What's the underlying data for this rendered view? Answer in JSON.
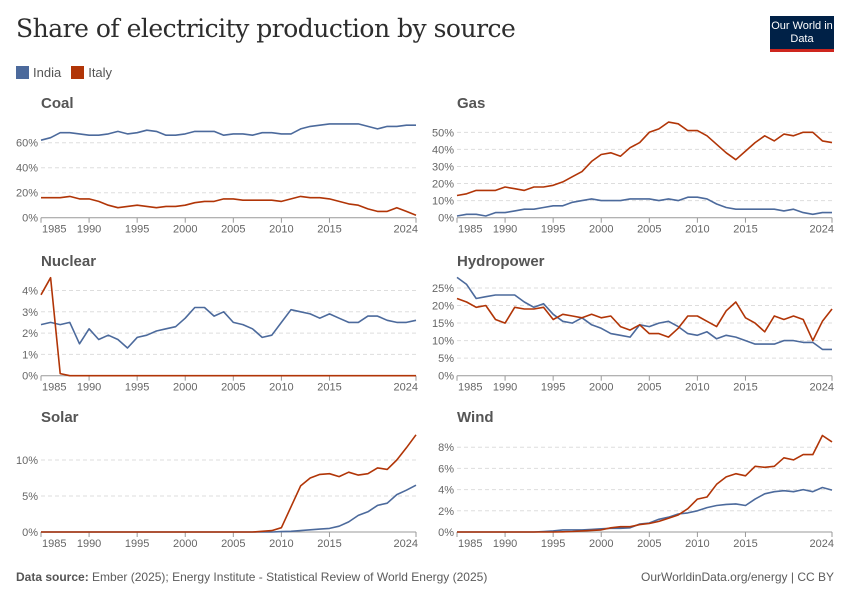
{
  "header": {
    "title": "Share of electricity production by source",
    "logo_text": "Our World in Data"
  },
  "legend": [
    {
      "name": "India",
      "color": "#4c6a9c"
    },
    {
      "name": "Italy",
      "color": "#b13507"
    }
  ],
  "footer": {
    "source_label": "Data source:",
    "source_text": "Ember (2025); Energy Institute - Statistical Review of World Energy (2025)",
    "credit": "OurWorldinData.org/energy | CC BY"
  },
  "chart_data": [
    {
      "type": "line",
      "title": "Coal",
      "x": {
        "start": 1985,
        "end": 2024,
        "tick_labels": [
          "1985",
          "1990",
          "1995",
          "2000",
          "2005",
          "2010",
          "2015",
          "2024"
        ]
      },
      "yticks": [
        0,
        20,
        40,
        60
      ],
      "ytick_labels": [
        "0%",
        "20%",
        "40%",
        "60%"
      ],
      "grid": true,
      "series": [
        {
          "name": "India",
          "values": [
            62,
            64,
            68,
            68,
            67,
            66,
            66,
            67,
            69,
            67,
            68,
            70,
            69,
            66,
            66,
            67,
            69,
            69,
            69,
            66,
            67,
            67,
            66,
            68,
            68,
            67,
            67,
            71,
            73,
            74,
            75,
            75,
            75,
            75,
            73,
            71,
            73,
            73,
            74,
            74
          ]
        },
        {
          "name": "Italy",
          "values": [
            16,
            16,
            16,
            17,
            15,
            15,
            13,
            10,
            8,
            9,
            10,
            9,
            8,
            9,
            9,
            10,
            12,
            13,
            13,
            15,
            15,
            14,
            14,
            14,
            14,
            13,
            15,
            17,
            16,
            16,
            15,
            13,
            11,
            10,
            7,
            5,
            5,
            8,
            5,
            2
          ]
        }
      ]
    },
    {
      "type": "line",
      "title": "Gas",
      "x": {
        "start": 1985,
        "end": 2024,
        "tick_labels": [
          "1985",
          "1990",
          "1995",
          "2000",
          "2005",
          "2010",
          "2015",
          "2024"
        ]
      },
      "yticks": [
        0,
        10,
        20,
        30,
        40,
        50
      ],
      "ytick_labels": [
        "0%",
        "10%",
        "20%",
        "30%",
        "40%",
        "50%"
      ],
      "grid": true,
      "series": [
        {
          "name": "India",
          "values": [
            1,
            2,
            2,
            1,
            3,
            3,
            4,
            5,
            5,
            6,
            7,
            7,
            9,
            10,
            11,
            10,
            10,
            10,
            11,
            11,
            11,
            10,
            11,
            10,
            12,
            12,
            11,
            8,
            6,
            5,
            5,
            5,
            5,
            5,
            4,
            5,
            3,
            2,
            3,
            3
          ]
        },
        {
          "name": "Italy",
          "values": [
            13,
            14,
            16,
            16,
            16,
            18,
            17,
            16,
            18,
            18,
            19,
            21,
            24,
            27,
            33,
            37,
            38,
            36,
            41,
            44,
            50,
            52,
            56,
            55,
            51,
            51,
            48,
            43,
            38,
            34,
            39,
            44,
            48,
            45,
            49,
            48,
            50,
            50,
            45,
            44
          ]
        }
      ]
    },
    {
      "type": "line",
      "title": "Nuclear",
      "x": {
        "start": 1985,
        "end": 2024,
        "tick_labels": [
          "1985",
          "1990",
          "1995",
          "2000",
          "2005",
          "2010",
          "2015",
          "2024"
        ]
      },
      "yticks": [
        0,
        1,
        2,
        3,
        4
      ],
      "ytick_labels": [
        "0%",
        "1%",
        "2%",
        "3%",
        "4%"
      ],
      "grid": true,
      "series": [
        {
          "name": "India",
          "values": [
            2.4,
            2.5,
            2.4,
            2.5,
            1.5,
            2.2,
            1.7,
            1.9,
            1.7,
            1.3,
            1.8,
            1.9,
            2.1,
            2.2,
            2.3,
            2.7,
            3.2,
            3.2,
            2.8,
            3.0,
            2.5,
            2.4,
            2.2,
            1.8,
            1.9,
            2.5,
            3.1,
            3.0,
            2.9,
            2.7,
            2.9,
            2.7,
            2.5,
            2.5,
            2.8,
            2.8,
            2.6,
            2.5,
            2.5,
            2.6
          ]
        },
        {
          "name": "Italy",
          "values": [
            3.8,
            4.6,
            0.1,
            0,
            0,
            0,
            0,
            0,
            0,
            0,
            0,
            0,
            0,
            0,
            0,
            0,
            0,
            0,
            0,
            0,
            0,
            0,
            0,
            0,
            0,
            0,
            0,
            0,
            0,
            0,
            0,
            0,
            0,
            0,
            0,
            0,
            0,
            0,
            0,
            0
          ]
        }
      ]
    },
    {
      "type": "line",
      "title": "Hydropower",
      "x": {
        "start": 1985,
        "end": 2024,
        "tick_labels": [
          "1985",
          "1990",
          "1995",
          "2000",
          "2005",
          "2010",
          "2015",
          "2024"
        ]
      },
      "yticks": [
        0,
        5,
        10,
        15,
        20,
        25
      ],
      "ytick_labels": [
        "0%",
        "5%",
        "10%",
        "15%",
        "20%",
        "25%"
      ],
      "grid": true,
      "series": [
        {
          "name": "India",
          "values": [
            28,
            26,
            22,
            22.5,
            23,
            23,
            23,
            21,
            19.5,
            20.5,
            17.5,
            15.5,
            15,
            16.5,
            14.5,
            13.5,
            12,
            11.5,
            11,
            14.5,
            14,
            15,
            15.5,
            14,
            12,
            11.5,
            12.5,
            10.5,
            11.5,
            11,
            10,
            9,
            9,
            9,
            10,
            10,
            9.5,
            9.5,
            7.5,
            7.5
          ]
        },
        {
          "name": "Italy",
          "values": [
            22,
            21,
            19.5,
            20,
            16,
            15,
            19.5,
            19,
            19,
            19.5,
            16,
            17.5,
            17,
            16.5,
            17.5,
            16.5,
            17,
            14,
            13,
            14.5,
            12,
            12,
            11,
            13.5,
            17,
            17,
            15.5,
            14,
            18.5,
            21,
            16.5,
            15,
            12.5,
            17,
            16,
            17,
            16,
            10,
            15.5,
            19
          ]
        }
      ]
    },
    {
      "type": "line",
      "title": "Solar",
      "x": {
        "start": 1985,
        "end": 2024,
        "tick_labels": [
          "1985",
          "1990",
          "1995",
          "2000",
          "2005",
          "2010",
          "2015",
          "2024"
        ]
      },
      "yticks": [
        0,
        5,
        10
      ],
      "ytick_labels": [
        "0%",
        "5%",
        "10%"
      ],
      "grid": true,
      "series": [
        {
          "name": "India",
          "values": [
            0,
            0,
            0,
            0,
            0,
            0,
            0,
            0,
            0,
            0,
            0,
            0,
            0,
            0,
            0,
            0,
            0,
            0,
            0,
            0,
            0,
            0,
            0,
            0,
            0,
            0.05,
            0.1,
            0.2,
            0.3,
            0.4,
            0.5,
            0.8,
            1.4,
            2.3,
            2.8,
            3.7,
            4.0,
            5.2,
            5.8,
            6.5
          ]
        },
        {
          "name": "Italy",
          "values": [
            0,
            0,
            0,
            0,
            0,
            0,
            0,
            0,
            0,
            0,
            0,
            0,
            0,
            0,
            0,
            0,
            0,
            0,
            0,
            0,
            0,
            0,
            0,
            0.1,
            0.2,
            0.6,
            3.5,
            6.4,
            7.5,
            8.0,
            8.1,
            7.7,
            8.3,
            7.9,
            8.1,
            8.9,
            8.7,
            10,
            11.7,
            13.5
          ]
        }
      ]
    },
    {
      "type": "line",
      "title": "Wind",
      "x": {
        "start": 1985,
        "end": 2024,
        "tick_labels": [
          "1985",
          "1990",
          "1995",
          "2000",
          "2005",
          "2010",
          "2015",
          "2024"
        ]
      },
      "yticks": [
        0,
        2,
        4,
        6,
        8
      ],
      "ytick_labels": [
        "0%",
        "2%",
        "4%",
        "6%",
        "8%"
      ],
      "grid": true,
      "series": [
        {
          "name": "India",
          "values": [
            0,
            0,
            0,
            0,
            0,
            0,
            0,
            0,
            0,
            0.05,
            0.1,
            0.2,
            0.2,
            0.2,
            0.25,
            0.3,
            0.35,
            0.35,
            0.4,
            0.75,
            0.85,
            1.2,
            1.4,
            1.7,
            1.8,
            2.0,
            2.3,
            2.5,
            2.6,
            2.65,
            2.5,
            3.1,
            3.6,
            3.8,
            3.9,
            3.8,
            4.0,
            3.8,
            4.2,
            3.95
          ]
        },
        {
          "name": "Italy",
          "values": [
            0,
            0,
            0,
            0,
            0,
            0,
            0,
            0,
            0,
            0,
            0,
            0.02,
            0.05,
            0.1,
            0.15,
            0.2,
            0.4,
            0.5,
            0.5,
            0.7,
            0.8,
            1.0,
            1.3,
            1.6,
            2.2,
            3.1,
            3.3,
            4.5,
            5.2,
            5.5,
            5.3,
            6.2,
            6.1,
            6.2,
            7.0,
            6.8,
            7.3,
            7.3,
            9.1,
            8.5
          ]
        }
      ]
    }
  ]
}
